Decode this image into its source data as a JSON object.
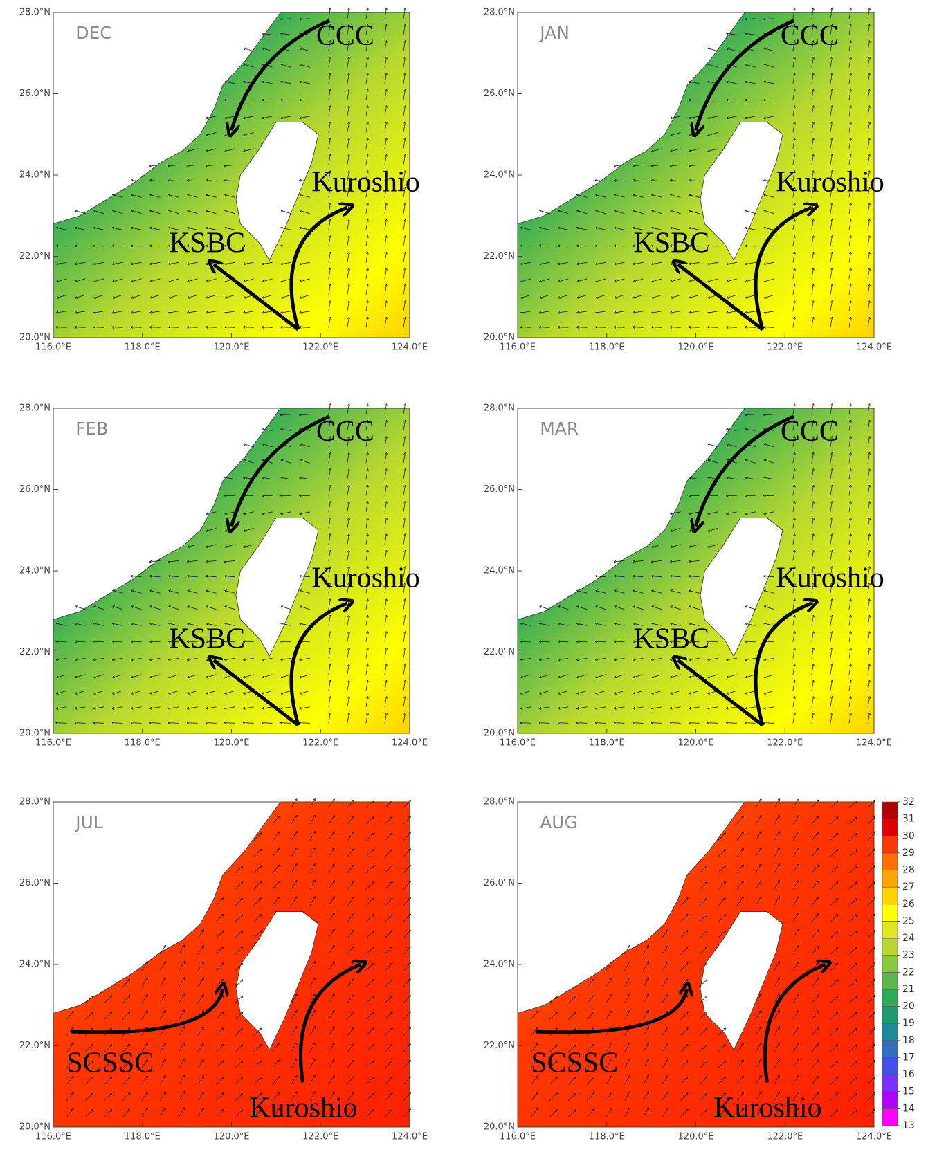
{
  "axes": {
    "xlim": [
      116,
      124
    ],
    "ylim": [
      20,
      28
    ],
    "xticks": [
      {
        "value": 116,
        "label": "116.0°E"
      },
      {
        "value": 118,
        "label": "118.0°E"
      },
      {
        "value": 120,
        "label": "120.0°E"
      },
      {
        "value": 122,
        "label": "122.0°E"
      },
      {
        "value": 124,
        "label": "124.0°E"
      }
    ],
    "yticks": [
      {
        "value": 20,
        "label": "20.0°N"
      },
      {
        "value": 22,
        "label": "22.0°N"
      },
      {
        "value": 24,
        "label": "24.0°N"
      },
      {
        "value": 26,
        "label": "26.0°N"
      },
      {
        "value": 28,
        "label": "28.0°N"
      }
    ]
  },
  "panels": [
    {
      "month": "DEC",
      "currents": [
        "CCC",
        "Kuroshio",
        "KSBC"
      ]
    },
    {
      "month": "JAN",
      "currents": [
        "CCC",
        "Kuroshio",
        "KSBC"
      ]
    },
    {
      "month": "FEB",
      "currents": [
        "CCC",
        "Kuroshio",
        "KSBC"
      ]
    },
    {
      "month": "MAR",
      "currents": [
        "CCC",
        "Kuroshio",
        "KSBC"
      ]
    },
    {
      "month": "JUL",
      "currents": [
        "SCSSC",
        "Kuroshio"
      ]
    },
    {
      "month": "AUG",
      "currents": [
        "SCSSC",
        "Kuroshio"
      ]
    }
  ],
  "colorbar": {
    "ticks": [
      13,
      14,
      15,
      16,
      17,
      18,
      19,
      20,
      21,
      22,
      23,
      24,
      25,
      26,
      27,
      28,
      29,
      30,
      31,
      32
    ],
    "colors": [
      "#ff00ff",
      "#b000ff",
      "#7a30ff",
      "#4050e8",
      "#2f70c0",
      "#1f8a98",
      "#1f9a70",
      "#2faa5a",
      "#5ab84a",
      "#8cc83c",
      "#b8d830",
      "#e0e820",
      "#ffff00",
      "#ffd200",
      "#ffa500",
      "#ff7000",
      "#ff3800",
      "#e00000",
      "#b00000"
    ]
  }
}
